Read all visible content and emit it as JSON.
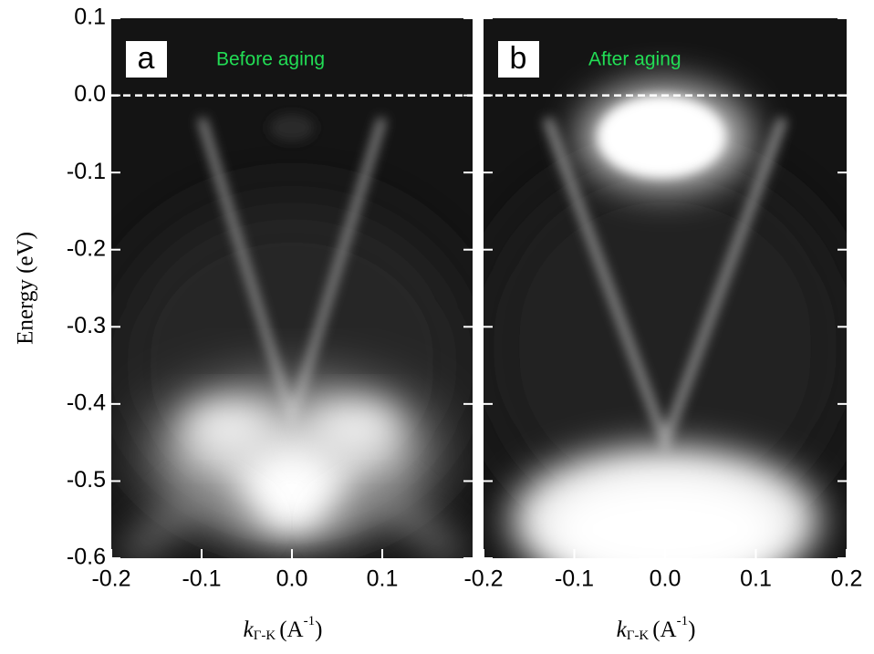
{
  "chart_data": [
    {
      "type": "arpes",
      "panel_label": "a",
      "title": "Before aging",
      "title_color": "#22dd55",
      "xlim": [
        -0.2,
        0.2
      ],
      "xticks": [
        -0.2,
        -0.1,
        {
          "value": 0,
          "label": "0.0"
        },
        0.1
      ],
      "ylim": [
        -0.6,
        0.1
      ],
      "yticks": [
        0.1,
        {
          "value": 0,
          "label": "0.0"
        },
        -0.1,
        -0.2,
        -0.3,
        -0.4,
        -0.5,
        -0.6
      ],
      "y_label": "Energy (eV)",
      "reference_line": 0,
      "x_label": {
        "symbol": "k",
        "subscript": "Γ-K",
        "unit": "(A",
        "superscript": "-1",
        "close": ")"
      }
    },
    {
      "type": "arpes",
      "panel_label": "b",
      "title": "After aging",
      "title_color": "#22dd55",
      "xlim": [
        -0.2,
        0.2
      ],
      "xticks": [
        -0.2,
        -0.1,
        {
          "value": 0,
          "label": "0.0"
        },
        0.1,
        0.2
      ],
      "ylim": [
        -0.6,
        0.1
      ],
      "reference_line": 0,
      "x_label": {
        "symbol": "k",
        "subscript": "Γ-K",
        "unit": "(A",
        "superscript": "-1",
        "close": ")"
      }
    }
  ]
}
